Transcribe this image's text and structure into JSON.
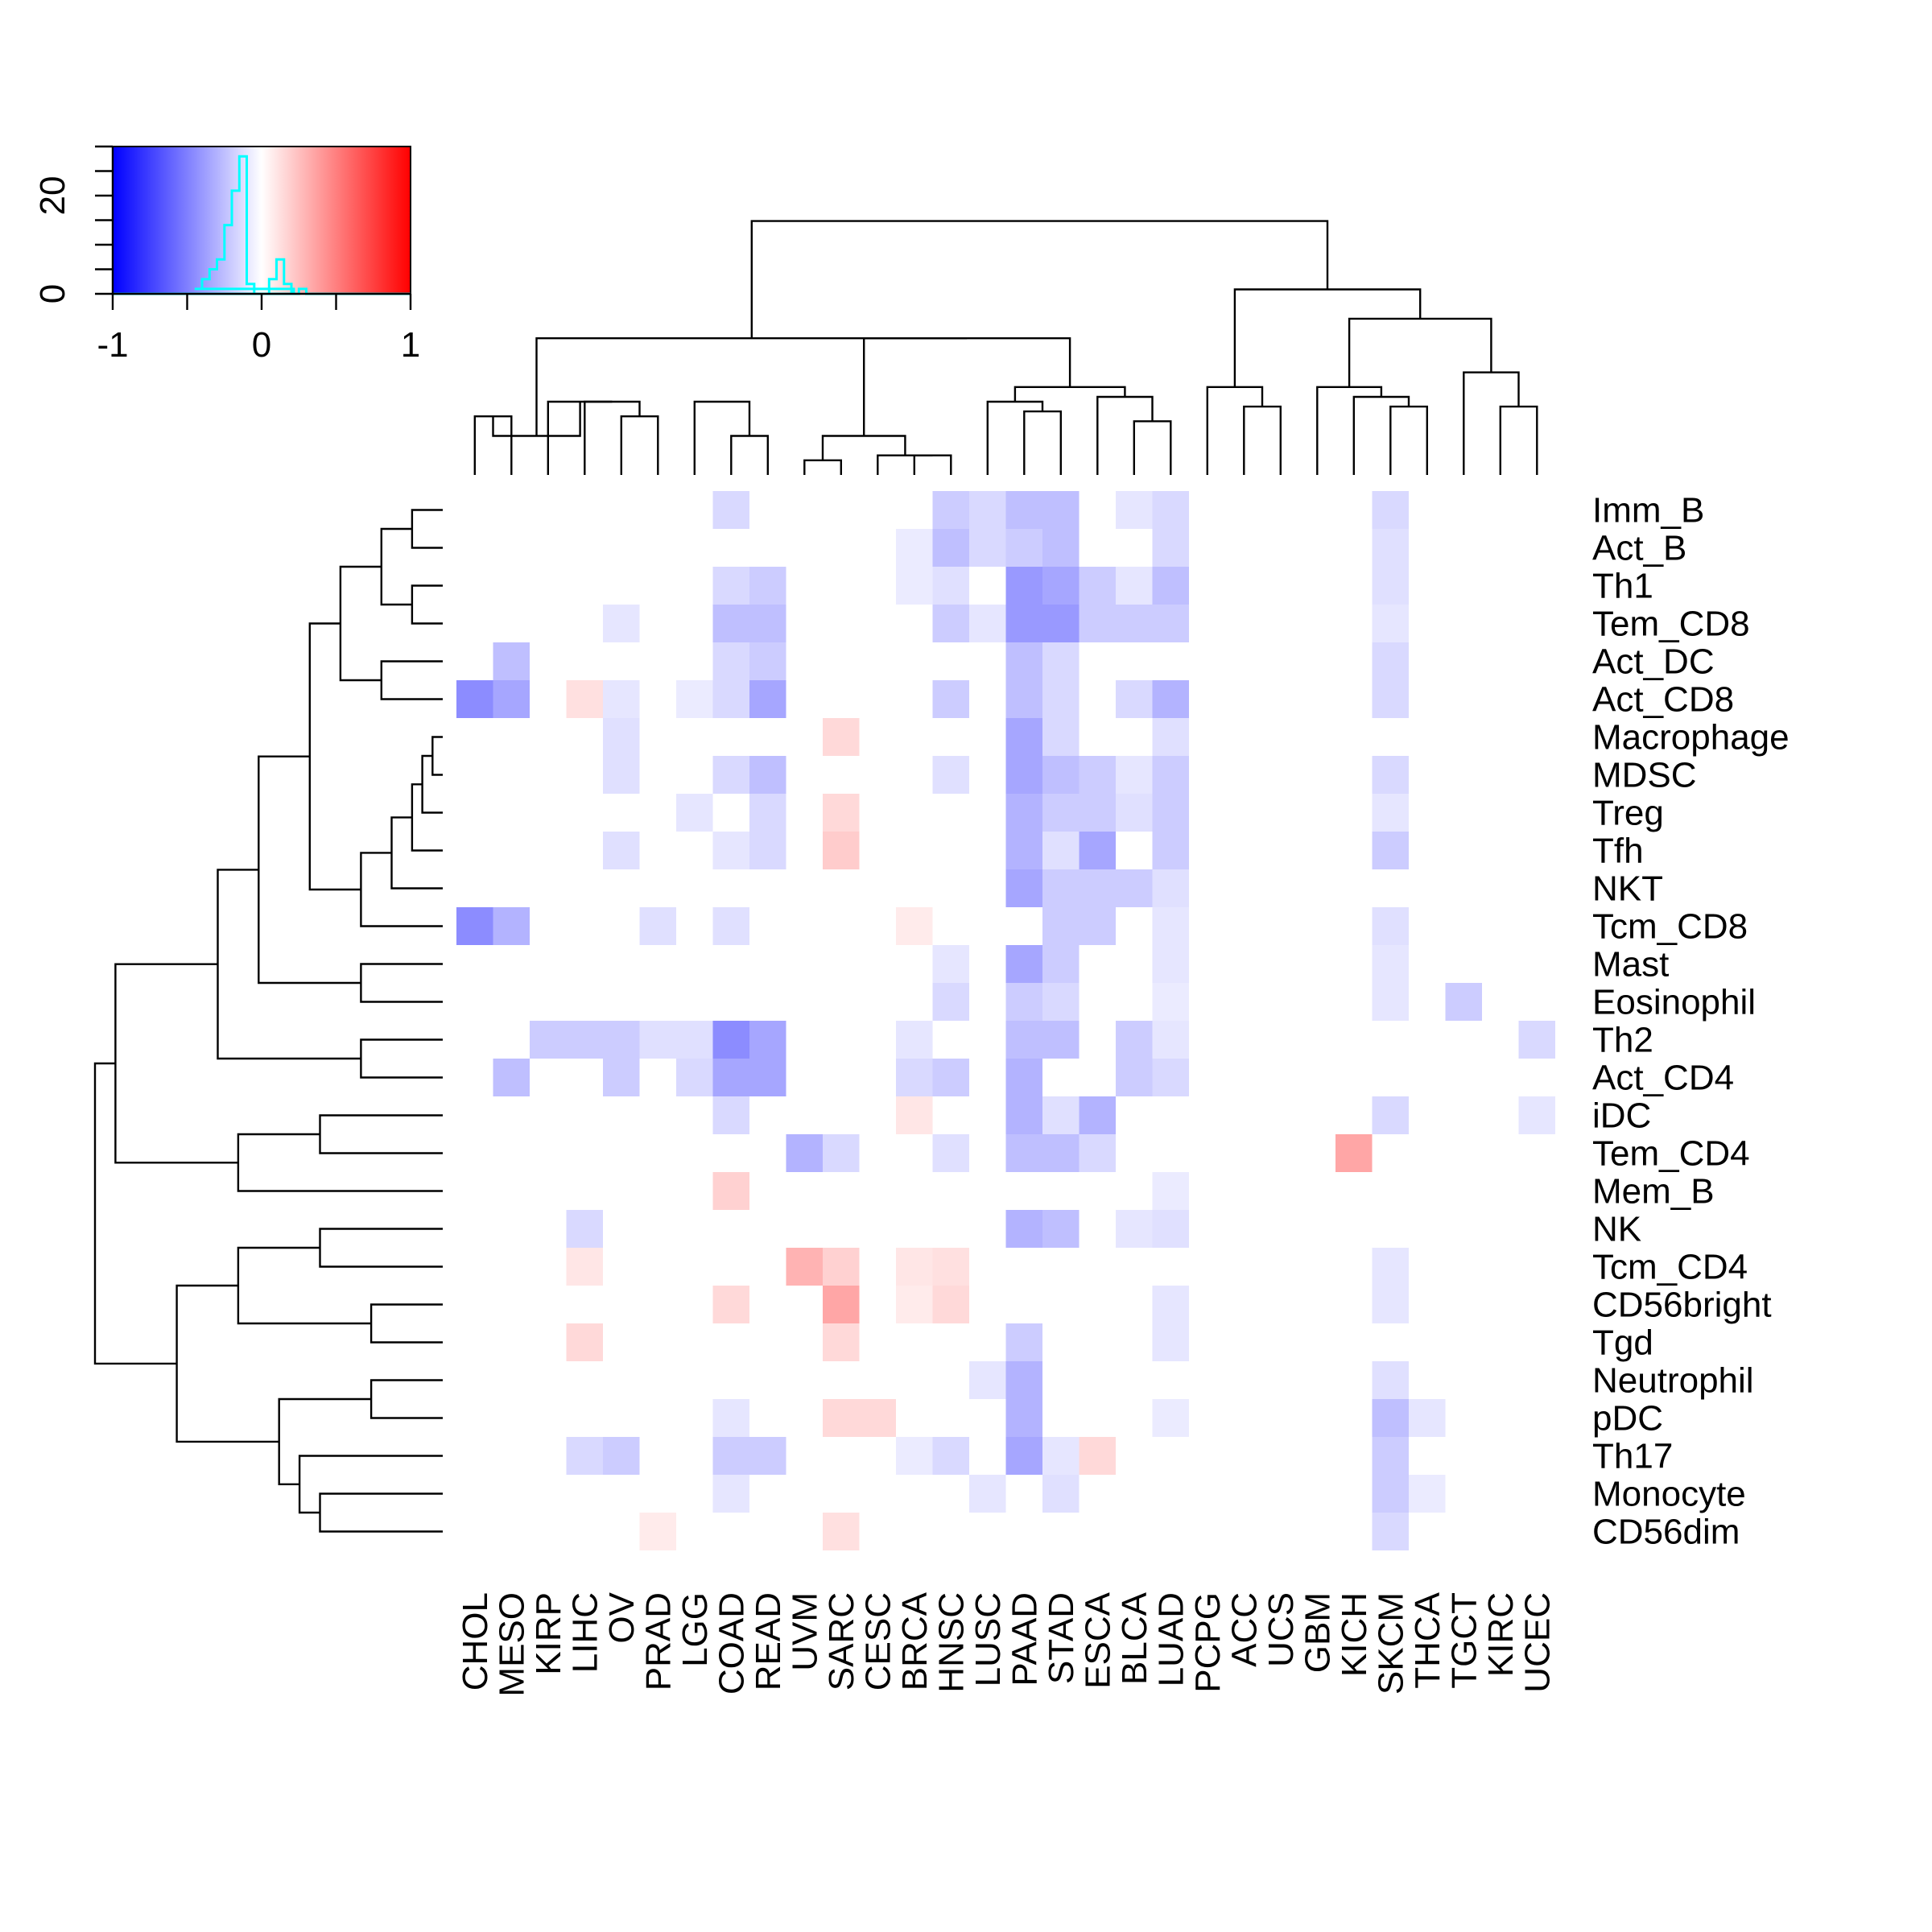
{
  "chart_data": {
    "type": "heatmap",
    "title": "",
    "columns": [
      "CHOL",
      "MESO",
      "KIRP",
      "LIHC",
      "OV",
      "PRAD",
      "LGG",
      "COAD",
      "READ",
      "UVM",
      "SARC",
      "CESC",
      "BRCA",
      "HNSC",
      "LUSC",
      "PAAD",
      "STAD",
      "ESCA",
      "BLCA",
      "LUAD",
      "PCPG",
      "ACC",
      "UCS",
      "GBM",
      "KICH",
      "SKCM",
      "THCA",
      "TGCT",
      "KIRC",
      "UCEC"
    ],
    "rows": [
      "Imm_B",
      "Act_B",
      "Th1",
      "Tem_CD8",
      "Act_DC",
      "Act_CD8",
      "Macrophage",
      "MDSC",
      "Treg",
      "Tfh",
      "NKT",
      "Tcm_CD8",
      "Mast",
      "Eosinophil",
      "Th2",
      "Act_CD4",
      "iDC",
      "Tem_CD4",
      "Mem_B",
      "NK",
      "Tcm_CD4",
      "CD56bright",
      "Tgd",
      "Neutrophil",
      "pDC",
      "Th17",
      "Monocyte",
      "CD56dim"
    ],
    "value_range": [
      -1,
      1
    ],
    "color_scale": {
      "low": "#0000ff",
      "mid": "#ffffff",
      "high": "#ff0000"
    },
    "values": [
      [
        0,
        0,
        0,
        0,
        0,
        0,
        0,
        -0.15,
        0,
        0,
        0,
        0,
        0,
        -0.2,
        -0.15,
        -0.25,
        -0.25,
        0,
        -0.1,
        -0.15,
        0,
        0,
        0,
        0,
        0,
        -0.15,
        0,
        0,
        0,
        0
      ],
      [
        0,
        0,
        0,
        0,
        0,
        0,
        0,
        0,
        0,
        0,
        0,
        0,
        -0.08,
        -0.25,
        -0.15,
        -0.2,
        -0.25,
        0,
        0,
        -0.15,
        0,
        0,
        0,
        0,
        0,
        -0.12,
        0,
        0,
        0,
        0
      ],
      [
        0,
        0,
        0,
        0,
        0,
        0,
        0,
        -0.15,
        -0.2,
        0,
        0,
        0,
        -0.08,
        -0.12,
        0,
        -0.4,
        -0.35,
        -0.2,
        -0.1,
        -0.25,
        0,
        0,
        0,
        0,
        0,
        -0.12,
        0,
        0,
        0,
        0
      ],
      [
        0,
        0,
        0,
        0,
        -0.1,
        0,
        0,
        -0.25,
        -0.25,
        0,
        0,
        0,
        0,
        -0.2,
        -0.1,
        -0.4,
        -0.4,
        -0.2,
        -0.2,
        -0.2,
        0,
        0,
        0,
        0,
        0,
        -0.1,
        0,
        0,
        0,
        0
      ],
      [
        0,
        -0.25,
        0,
        0,
        0,
        0,
        0,
        -0.15,
        -0.2,
        0,
        0,
        0,
        0,
        0,
        0,
        -0.25,
        -0.15,
        0,
        0,
        0,
        0,
        0,
        0,
        0,
        0,
        -0.15,
        0,
        0,
        0,
        0
      ],
      [
        -0.45,
        -0.35,
        0,
        0.12,
        -0.1,
        0,
        -0.08,
        -0.15,
        -0.35,
        0,
        0,
        0,
        0,
        -0.2,
        0,
        -0.25,
        -0.15,
        0,
        -0.15,
        -0.3,
        0,
        0,
        0,
        0,
        0,
        -0.15,
        0,
        0,
        0,
        0
      ],
      [
        0,
        0,
        0,
        0,
        -0.12,
        0,
        0,
        0,
        0,
        0,
        0.15,
        0,
        0,
        0,
        0,
        -0.35,
        -0.15,
        0,
        0,
        -0.12,
        0,
        0,
        0,
        0,
        0,
        0,
        0,
        0,
        0,
        0
      ],
      [
        0,
        0,
        0,
        0,
        -0.12,
        0,
        0,
        -0.15,
        -0.25,
        0,
        0,
        0,
        0,
        -0.12,
        0,
        -0.35,
        -0.25,
        -0.2,
        -0.1,
        -0.2,
        0,
        0,
        0,
        0,
        0,
        -0.15,
        0,
        0,
        0,
        0
      ],
      [
        0,
        0,
        0,
        0,
        0,
        0,
        -0.1,
        0,
        -0.15,
        0,
        0.15,
        0,
        0,
        0,
        0,
        -0.3,
        -0.2,
        -0.2,
        -0.12,
        -0.2,
        0,
        0,
        0,
        0,
        0,
        -0.1,
        0,
        0,
        0,
        0
      ],
      [
        0,
        0,
        0,
        0,
        -0.12,
        0,
        0,
        -0.1,
        -0.15,
        0,
        0.2,
        0,
        0,
        0,
        0,
        -0.3,
        -0.12,
        -0.35,
        0,
        -0.2,
        0,
        0,
        0,
        0,
        0,
        -0.2,
        0,
        0,
        0,
        0
      ],
      [
        0,
        0,
        0,
        0,
        0,
        0,
        0,
        0,
        0,
        0,
        0,
        0,
        0,
        0,
        0,
        -0.35,
        -0.2,
        -0.2,
        -0.2,
        -0.12,
        0,
        0,
        0,
        0,
        0,
        0,
        0,
        0,
        0,
        0
      ],
      [
        -0.45,
        -0.3,
        0,
        0,
        0,
        -0.12,
        0,
        -0.12,
        0,
        0,
        0,
        0,
        0.08,
        0,
        0,
        0,
        -0.2,
        -0.2,
        0,
        -0.1,
        0,
        0,
        0,
        0,
        0,
        -0.12,
        0,
        0,
        0,
        0
      ],
      [
        0,
        0,
        0,
        0,
        0,
        0,
        0,
        0,
        0,
        0,
        0,
        0,
        0,
        -0.1,
        0,
        -0.35,
        -0.2,
        0,
        0,
        -0.1,
        0,
        0,
        0,
        0,
        0,
        -0.1,
        0,
        0,
        0,
        0
      ],
      [
        0,
        0,
        0,
        0,
        0,
        0,
        0,
        0,
        0,
        0,
        0,
        0,
        0,
        -0.15,
        0,
        -0.2,
        -0.15,
        0,
        0,
        -0.08,
        0,
        0,
        0,
        0,
        0,
        -0.1,
        0,
        -0.2,
        0,
        0
      ],
      [
        0,
        0,
        -0.2,
        -0.2,
        -0.2,
        -0.12,
        -0.12,
        -0.45,
        -0.35,
        0,
        0,
        0,
        -0.1,
        0,
        0,
        -0.25,
        -0.25,
        0,
        -0.2,
        -0.1,
        0,
        0,
        0,
        0,
        0,
        0,
        0,
        0,
        0,
        -0.15
      ],
      [
        0,
        -0.25,
        0,
        0,
        -0.2,
        0,
        -0.15,
        -0.35,
        -0.35,
        0,
        0,
        0,
        -0.15,
        -0.2,
        0,
        -0.3,
        0,
        0,
        -0.2,
        -0.15,
        0,
        0,
        0,
        0,
        0,
        0,
        0,
        0,
        0,
        0
      ],
      [
        0,
        0,
        0,
        0,
        0,
        0,
        0,
        -0.15,
        0,
        0,
        0,
        0,
        0.1,
        0,
        0,
        -0.3,
        -0.12,
        -0.3,
        0,
        0,
        0,
        0,
        0,
        0,
        0,
        -0.15,
        0,
        0,
        0,
        -0.1
      ],
      [
        0,
        0,
        0,
        0,
        0,
        0,
        0,
        0,
        0,
        -0.3,
        -0.15,
        0,
        0,
        -0.12,
        0,
        -0.25,
        -0.25,
        -0.15,
        0,
        0,
        0,
        0,
        0,
        0,
        0.35,
        0,
        0,
        0,
        0,
        0
      ],
      [
        0,
        0,
        0,
        0,
        0,
        0,
        0,
        0.18,
        0,
        0,
        0,
        0,
        0,
        0,
        0,
        0,
        0,
        0,
        0,
        -0.08,
        0,
        0,
        0,
        0,
        0,
        0,
        0,
        0,
        0,
        0
      ],
      [
        0,
        0,
        0,
        -0.15,
        0,
        0,
        0,
        0,
        0,
        0,
        0,
        0,
        0,
        0,
        0,
        -0.3,
        -0.25,
        0,
        -0.1,
        -0.12,
        0,
        0,
        0,
        0,
        0,
        0,
        0,
        0,
        0,
        0
      ],
      [
        0,
        0,
        0,
        0.1,
        0,
        0,
        0,
        0,
        0,
        0.3,
        0.18,
        0,
        0.1,
        0.12,
        0,
        0,
        0,
        0,
        0,
        0,
        0,
        0,
        0,
        0,
        0,
        -0.1,
        0,
        0,
        0,
        0
      ],
      [
        0,
        0,
        0,
        0,
        0,
        0,
        0,
        0.15,
        0,
        0,
        0.35,
        0,
        0.08,
        0.15,
        0,
        0,
        0,
        0,
        0,
        -0.1,
        0,
        0,
        0,
        0,
        0,
        -0.1,
        0,
        0,
        0,
        0
      ],
      [
        0,
        0,
        0,
        0.15,
        0,
        0,
        0,
        0,
        0,
        0,
        0.15,
        0,
        0,
        0,
        0,
        -0.2,
        0,
        0,
        0,
        -0.1,
        0,
        0,
        0,
        0,
        0,
        0,
        0,
        0,
        0,
        0
      ],
      [
        0,
        0,
        0,
        0,
        0,
        0,
        0,
        0,
        0,
        0,
        0,
        0,
        0,
        0,
        -0.1,
        -0.3,
        0,
        0,
        0,
        0,
        0,
        0,
        0,
        0,
        0,
        -0.12,
        0,
        0,
        0,
        0
      ],
      [
        0,
        0,
        0,
        0,
        0,
        0,
        0,
        -0.1,
        0,
        0,
        0.15,
        0.15,
        0,
        0,
        0,
        -0.3,
        0,
        0,
        0,
        -0.08,
        0,
        0,
        0,
        0,
        0,
        -0.25,
        -0.1,
        0,
        0,
        0
      ],
      [
        0,
        0,
        0,
        -0.15,
        -0.2,
        0,
        0,
        -0.2,
        -0.2,
        0,
        0,
        0,
        -0.08,
        -0.15,
        0,
        -0.35,
        -0.1,
        0.15,
        0,
        0,
        0,
        0,
        0,
        0,
        0,
        -0.2,
        0,
        0,
        0,
        0
      ],
      [
        0,
        0,
        0,
        0,
        0,
        0,
        0,
        -0.1,
        0,
        0,
        0,
        0,
        0,
        0,
        -0.1,
        0,
        -0.12,
        0,
        0,
        0,
        0,
        0,
        0,
        0,
        0,
        -0.2,
        -0.08,
        0,
        0,
        0
      ],
      [
        0,
        0,
        0,
        0,
        0,
        0.08,
        0,
        0,
        0,
        0,
        0.12,
        0,
        0,
        0,
        0,
        0,
        0,
        0,
        0,
        0,
        0,
        0,
        0,
        0,
        0,
        -0.15,
        0,
        0,
        0,
        0
      ]
    ],
    "color_key": {
      "x_ticks": [
        "-1",
        "0",
        "1"
      ],
      "x_tick_values": [
        -1,
        0,
        1
      ],
      "y_ticks": [
        "0",
        "20"
      ],
      "y_tick_values": [
        0,
        20
      ],
      "y_max": 30,
      "histogram_color": "#00ffff",
      "histogram": {
        "bin_centers": [
          -0.475,
          -0.425,
          -0.375,
          -0.325,
          -0.275,
          -0.225,
          -0.175,
          -0.125,
          -0.075,
          -0.025,
          0.025,
          0.075,
          0.125,
          0.175,
          0.225,
          0.275,
          0.325
        ],
        "counts": [
          1,
          1,
          3,
          5,
          7,
          14,
          21,
          28,
          2,
          0,
          0,
          3,
          7,
          2,
          0,
          1,
          0
        ]
      }
    },
    "column_dendrogram": {
      "merges": [
        [
          -1,
          -2
        ],
        [
          -10,
          -11
        ],
        [
          -13,
          -14
        ],
        [
          -12,
          3
        ],
        [
          -8,
          -9
        ],
        [
          -7,
          5
        ],
        [
          -5,
          -6
        ],
        [
          -4,
          7
        ],
        [
          -3,
          8
        ],
        [
          1,
          9
        ],
        [
          2,
          4
        ],
        [
          -16,
          -17
        ],
        [
          -15,
          12
        ],
        [
          -19,
          -20
        ],
        [
          -18,
          14
        ],
        [
          13,
          15
        ],
        [
          11,
          16
        ],
        [
          10,
          17
        ],
        [
          -22,
          -23
        ],
        [
          -21,
          19
        ],
        [
          -26,
          -27
        ],
        [
          -25,
          21
        ],
        [
          -24,
          22
        ],
        [
          -29,
          -30
        ],
        [
          -28,
          24
        ],
        [
          23,
          25
        ],
        [
          20,
          26
        ],
        [
          18,
          27
        ]
      ],
      "heights": [
        0.6,
        0.15,
        0.2,
        0.2,
        0.4,
        0.75,
        0.6,
        0.75,
        0.75,
        0.4,
        0.4,
        0.65,
        0.75,
        0.55,
        0.8,
        0.9,
        1.4,
        1.4,
        0.7,
        0.9,
        0.7,
        0.8,
        0.9,
        0.7,
        1.05,
        1.6,
        1.9,
        2.6
      ]
    },
    "row_dendrogram": {
      "merges": [
        [
          -1,
          -2
        ],
        [
          -3,
          -4
        ],
        [
          1,
          2
        ],
        [
          -5,
          -6
        ],
        [
          3,
          4
        ],
        [
          -7,
          -8
        ],
        [
          5,
          6
        ],
        [
          -9,
          7
        ],
        [
          -10,
          8
        ],
        [
          -11,
          9
        ],
        [
          -12,
          10
        ],
        [
          -13,
          -14
        ],
        [
          -15,
          -16
        ],
        [
          11,
          13
        ],
        [
          12,
          14
        ],
        [
          15,
          16
        ],
        [
          -17,
          -18
        ],
        [
          17,
          -19
        ],
        [
          -20,
          -21
        ],
        [
          -22,
          -23
        ],
        [
          19,
          20
        ],
        [
          -24,
          -25
        ],
        [
          -26,
          -27
        ],
        [
          -28,
          23
        ],
        [
          22,
          24
        ],
        [
          25,
          -29
        ],
        [
          26,
          27
        ]
      ],
      "_note": "see row_order"
    },
    "row_dendrogram_ordered": {
      "merges": [
        [
          -1,
          -2
        ],
        [
          -3,
          -4
        ],
        [
          1,
          2
        ],
        [
          -5,
          -6
        ],
        [
          3,
          4
        ],
        [
          -7,
          -8
        ],
        [
          -9,
          6
        ],
        [
          -10,
          7
        ],
        [
          -11,
          8
        ],
        [
          -12,
          9
        ],
        [
          5,
          10
        ],
        [
          -13,
          -14
        ],
        [
          -15,
          -16
        ],
        [
          11,
          12
        ],
        [
          13,
          14
        ],
        [
          -17,
          -18
        ],
        [
          16,
          -19
        ],
        [
          15,
          17
        ],
        [
          -20,
          -21
        ],
        [
          -22,
          -23
        ],
        [
          19,
          20
        ],
        [
          -24,
          -25
        ],
        [
          -27,
          -28
        ],
        [
          -26,
          23
        ],
        [
          22,
          24
        ],
        [
          21,
          25
        ],
        [
          18,
          26
        ]
      ],
      "heights": [
        0.15,
        0.15,
        0.3,
        0.3,
        0.5,
        0.05,
        0.1,
        0.15,
        0.25,
        0.4,
        0.65,
        0.4,
        0.4,
        0.9,
        1.1,
        0.6,
        1.0,
        1.6,
        0.6,
        0.35,
        1.0,
        0.35,
        0.6,
        0.7,
        0.8,
        1.3,
        1.7
      ]
    }
  }
}
